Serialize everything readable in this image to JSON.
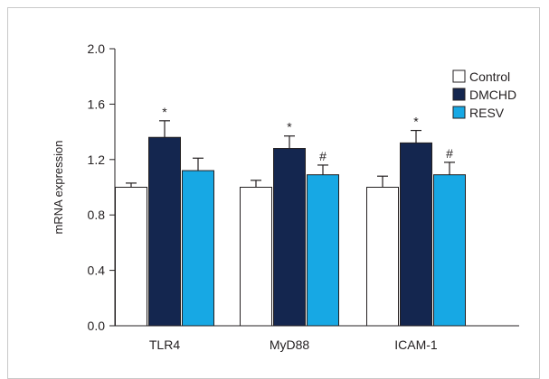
{
  "chart_data": {
    "type": "bar",
    "title": "",
    "xlabel": "",
    "ylabel": "mRNA expression",
    "ylim": [
      0,
      2.0
    ],
    "yticks": [
      "0.0",
      "0.4",
      "0.8",
      "1.2",
      "1.6",
      "2.0"
    ],
    "categories": [
      "TLR4",
      "MyD88",
      "ICAM-1"
    ],
    "series": [
      {
        "name": "Control",
        "color": "#ffffff",
        "values": [
          1.0,
          1.0,
          1.0
        ],
        "errors": [
          0.03,
          0.05,
          0.08
        ],
        "markers": [
          "",
          "",
          ""
        ]
      },
      {
        "name": "DMCHD",
        "color": "#14264f",
        "values": [
          1.36,
          1.28,
          1.32
        ],
        "errors": [
          0.12,
          0.09,
          0.09
        ],
        "markers": [
          "*",
          "*",
          "*"
        ]
      },
      {
        "name": "RESV",
        "color": "#17a8e4",
        "values": [
          1.12,
          1.09,
          1.09
        ],
        "errors": [
          0.09,
          0.07,
          0.09
        ],
        "markers": [
          "",
          "#",
          "#"
        ]
      }
    ],
    "grid": false,
    "legend_position": "top-right"
  }
}
